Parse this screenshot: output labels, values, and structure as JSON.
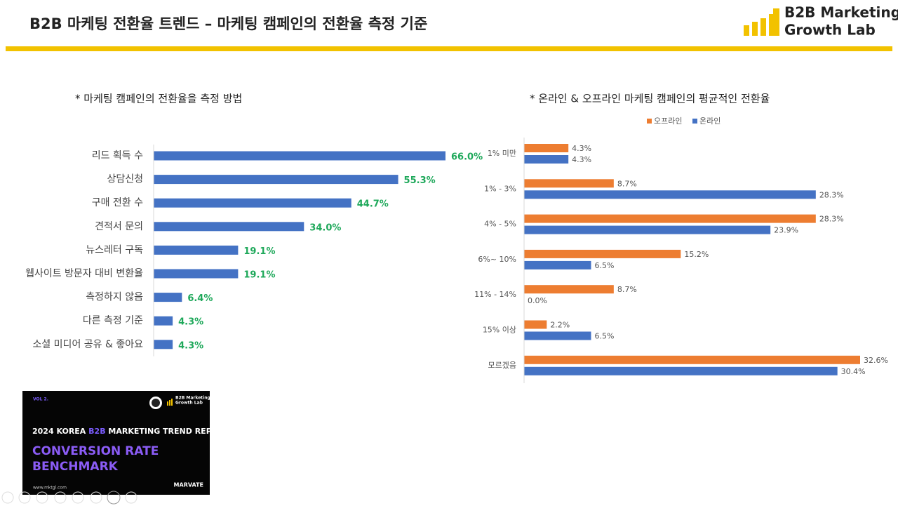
{
  "header": {
    "title": "B2B 마케팅 전환율 트렌드 – 마케팅 캠페인의 전환율 측정 기준",
    "logo": [
      "B2B Marketing",
      "Growth Lab"
    ]
  },
  "chart_data": [
    {
      "type": "bar",
      "orientation": "horizontal",
      "title": "* 마케팅 캠페인의 전환율을 측정 방법",
      "categories": [
        "리드 획득 수",
        "상담신청",
        "구매 전환 수",
        "견적서 문의",
        "뉴스레터 구독",
        "웹사이트 방문자 대비 변환율",
        "측정하지 않음",
        "다른 측정 기준",
        "소셜 미디어 공유 & 좋아요"
      ],
      "values": [
        66.0,
        55.3,
        44.7,
        34.0,
        19.1,
        19.1,
        6.4,
        4.3,
        4.3
      ],
      "value_labels": [
        "66.0%",
        "55.3%",
        "44.7%",
        "34.0%",
        "19.1%",
        "19.1%",
        "6.4%",
        "4.3%",
        "4.3%"
      ],
      "color": "#4472c4",
      "label_color": "#1ea85a"
    },
    {
      "type": "grouped_bar",
      "orientation": "horizontal",
      "title": "* 온라인 & 오프라인 마케팅 캠페인의 평균적인 전환율",
      "categories": [
        "1% 미만",
        "1% - 3%",
        "4% - 5%",
        "6%~ 10%",
        "11% - 14%",
        "15% 이상",
        "모르겠음"
      ],
      "series": [
        {
          "name": "오프라인",
          "color": "#ed7d31",
          "values": [
            4.3,
            8.7,
            28.3,
            15.2,
            8.7,
            2.2,
            32.6
          ],
          "value_labels": [
            "4.3%",
            "8.7%",
            "28.3%",
            "15.2%",
            "8.7%",
            "2.2%",
            "32.6%"
          ]
        },
        {
          "name": "온라인",
          "color": "#4472c4",
          "values": [
            4.3,
            28.3,
            23.9,
            6.5,
            0.0,
            6.5,
            30.4
          ],
          "value_labels": [
            "4.3%",
            "28.3%",
            "23.9%",
            "6.5%",
            "0.0%",
            "6.5%",
            "30.4%"
          ]
        }
      ],
      "legend": "top"
    }
  ],
  "thumbnail": {
    "vol": "VOL 2.",
    "brand": [
      "B2B Marketing",
      "Growth Lab"
    ],
    "report": [
      "2024 KOREA ",
      "B2B",
      " MARKETING TREND REPORT"
    ],
    "headline": [
      "CONVERSION RATE",
      "BENCHMARK"
    ],
    "url": "www.mktgl.com",
    "partner": "MARVATE"
  }
}
